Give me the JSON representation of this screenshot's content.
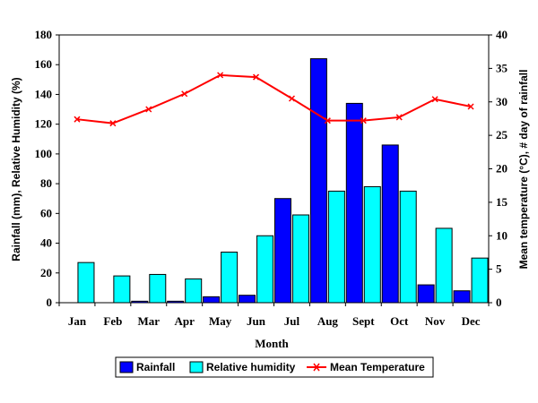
{
  "chart_data": {
    "type": "bar",
    "title": "",
    "xlabel": "Month",
    "ylabel_left": "Rainfall (mm), Relative Humidity (%)",
    "ylabel_right": "Mean temperature (°C), # day of rainfall",
    "categories": [
      "Jan",
      "Feb",
      "Mar",
      "Apr",
      "May",
      "Jun",
      "Jul",
      "Aug",
      "Sept",
      "Oct",
      "Nov",
      "Dec"
    ],
    "ylim_left": [
      0,
      180
    ],
    "yticks_left": [
      0,
      20,
      40,
      60,
      80,
      100,
      120,
      140,
      160,
      180
    ],
    "ylim_right": [
      0,
      40
    ],
    "yticks_right": [
      0,
      5,
      10,
      15,
      20,
      25,
      30,
      35,
      40
    ],
    "grid": false,
    "legend_position": "bottom",
    "series": [
      {
        "name": "Rainfall",
        "kind": "bar",
        "axis": "left",
        "color": "#0000ff",
        "values": [
          0,
          0,
          1,
          1,
          4,
          5,
          70,
          164,
          134,
          106,
          12,
          8
        ]
      },
      {
        "name": "Relative humidity",
        "kind": "bar",
        "axis": "left",
        "color": "#00ffff",
        "values": [
          27,
          18,
          19,
          16,
          34,
          45,
          59,
          75,
          78,
          75,
          50,
          30
        ]
      },
      {
        "name": "Mean Temperature",
        "kind": "line",
        "axis": "right",
        "color": "#ff0000",
        "values": [
          27.4,
          26.8,
          28.9,
          31.2,
          34.0,
          33.7,
          30.5,
          27.2,
          27.2,
          27.7,
          30.4,
          29.3
        ]
      }
    ]
  }
}
